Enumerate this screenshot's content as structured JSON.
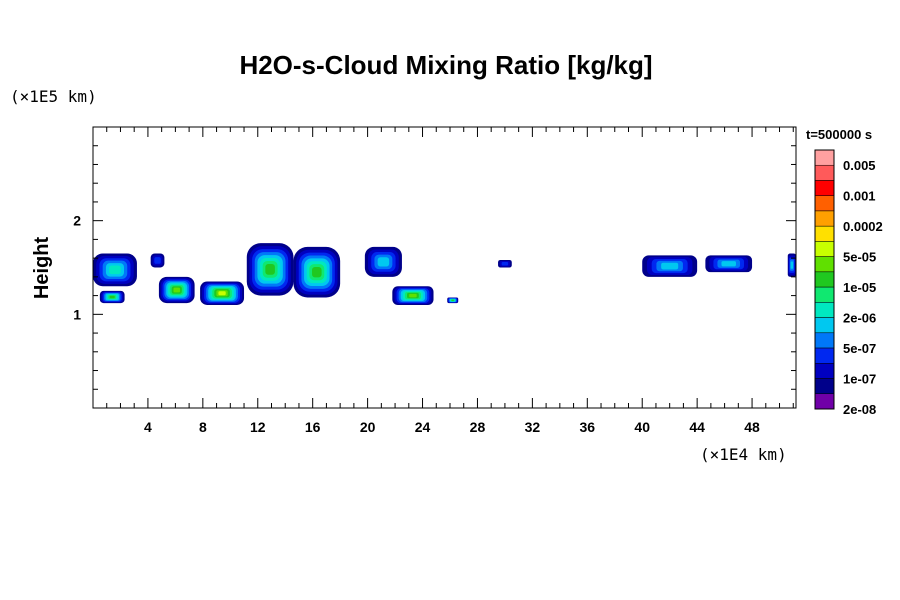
{
  "chart_data": {
    "type": "heatmap",
    "title": "H2O-s-Cloud Mixing Ratio [kg/kg]",
    "ylabel": "Height",
    "xlabel": "",
    "x_unit": "(×1E4 km)",
    "y_unit": "(×1E5 km)",
    "time_label": "t=500000 s",
    "xlim": [
      0,
      51.2
    ],
    "ylim": [
      0,
      3
    ],
    "x_ticks": [
      4,
      8,
      12,
      16,
      20,
      24,
      28,
      32,
      36,
      40,
      44,
      48
    ],
    "x_tick_labels": [
      "4",
      "8",
      "12",
      "16",
      "20",
      "24",
      "28",
      "32",
      "36",
      "40",
      "44",
      "48"
    ],
    "y_ticks": [
      1,
      2
    ],
    "y_tick_labels": [
      "1",
      "2"
    ],
    "colorbar": {
      "labels": [
        "0.005",
        "0.001",
        "0.0002",
        "5e-05",
        "1e-05",
        "2e-06",
        "5e-07",
        "1e-07",
        "2e-08"
      ],
      "colors_top_to_bottom": [
        "#ffa0a0",
        "#ff5a5a",
        "#ff0000",
        "#ff6000",
        "#ffa000",
        "#ffe000",
        "#c8ff00",
        "#60e000",
        "#20c820",
        "#10e870",
        "#00e8c0",
        "#00c8f0",
        "#0078f8",
        "#0028f0",
        "#0000c0",
        "#00008a",
        "#7000a8"
      ]
    },
    "regions": [
      {
        "x0": 0.0,
        "x1": 3.2,
        "y0": 1.3,
        "y1": 1.65,
        "level": 4
      },
      {
        "x0": 4.2,
        "x1": 5.2,
        "y0": 1.5,
        "y1": 1.65,
        "level": 1
      },
      {
        "x0": 0.5,
        "x1": 2.3,
        "y0": 1.12,
        "y1": 1.25,
        "level": 6
      },
      {
        "x0": 4.8,
        "x1": 7.4,
        "y0": 1.12,
        "y1": 1.4,
        "level": 7
      },
      {
        "x0": 7.8,
        "x1": 11.0,
        "y0": 1.1,
        "y1": 1.35,
        "level": 8
      },
      {
        "x0": 11.2,
        "x1": 14.6,
        "y0": 1.2,
        "y1": 1.76,
        "level": 6
      },
      {
        "x0": 14.6,
        "x1": 18.0,
        "y0": 1.18,
        "y1": 1.72,
        "level": 6
      },
      {
        "x0": 19.8,
        "x1": 22.5,
        "y0": 1.4,
        "y1": 1.72,
        "level": 3
      },
      {
        "x0": 21.8,
        "x1": 24.8,
        "y0": 1.1,
        "y1": 1.3,
        "level": 7
      },
      {
        "x0": 25.8,
        "x1": 26.6,
        "y0": 1.12,
        "y1": 1.18,
        "level": 6
      },
      {
        "x0": 29.5,
        "x1": 30.5,
        "y0": 1.5,
        "y1": 1.58,
        "level": 1
      },
      {
        "x0": 40.0,
        "x1": 44.0,
        "y0": 1.4,
        "y1": 1.63,
        "level": 3
      },
      {
        "x0": 44.6,
        "x1": 48.0,
        "y0": 1.45,
        "y1": 1.63,
        "level": 3
      },
      {
        "x0": 50.6,
        "x1": 51.2,
        "y0": 1.4,
        "y1": 1.65,
        "level": 3
      }
    ]
  }
}
